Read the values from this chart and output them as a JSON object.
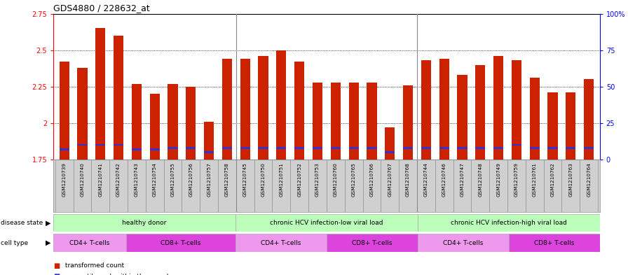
{
  "title": "GDS4880 / 228632_at",
  "samples": [
    "GSM1210739",
    "GSM1210740",
    "GSM1210741",
    "GSM1210742",
    "GSM1210743",
    "GSM1210754",
    "GSM1210755",
    "GSM1210756",
    "GSM1210757",
    "GSM1210758",
    "GSM1210745",
    "GSM1210750",
    "GSM1210751",
    "GSM1210752",
    "GSM1210753",
    "GSM1210760",
    "GSM1210765",
    "GSM1210766",
    "GSM1210767",
    "GSM1210768",
    "GSM1210744",
    "GSM1210746",
    "GSM1210747",
    "GSM1210748",
    "GSM1210749",
    "GSM1210759",
    "GSM1210761",
    "GSM1210762",
    "GSM1210763",
    "GSM1210764"
  ],
  "transformed_count": [
    2.42,
    2.38,
    2.65,
    2.6,
    2.27,
    2.2,
    2.27,
    2.25,
    2.01,
    2.44,
    2.44,
    2.46,
    2.5,
    2.42,
    2.28,
    2.28,
    2.28,
    2.28,
    1.97,
    2.26,
    2.43,
    2.44,
    2.33,
    2.4,
    2.46,
    2.43,
    2.31,
    2.21,
    2.21,
    2.3
  ],
  "percentile_rank": [
    7,
    10,
    10,
    10,
    7,
    7,
    8,
    8,
    5,
    8,
    8,
    8,
    8,
    8,
    8,
    8,
    8,
    8,
    5,
    8,
    8,
    8,
    8,
    8,
    8,
    10,
    8,
    8,
    8,
    8
  ],
  "bar_color": "#cc2200",
  "percentile_color": "#3333cc",
  "y_min": 1.75,
  "y_max": 2.75,
  "y_ticks": [
    1.75,
    2.0,
    2.25,
    2.5,
    2.75
  ],
  "y_tick_labels": [
    "1.75",
    "2",
    "2.25",
    "2.5",
    "2.75"
  ],
  "y2_ticks": [
    0,
    25,
    50,
    75,
    100
  ],
  "y2_labels": [
    "0",
    "25",
    "50",
    "75",
    "100%"
  ],
  "grid_lines": [
    2.0,
    2.25,
    2.5
  ],
  "bar_color_rgb": "#cc2200",
  "percentile_color_rgb": "#3333cc",
  "title_fontsize": 9,
  "tick_fontsize": 7,
  "bar_width": 0.55,
  "ds_groups": [
    {
      "label": "healthy donor",
      "start": 0,
      "end": 10,
      "color": "#bbffbb"
    },
    {
      "label": "chronic HCV infection-low viral load",
      "start": 10,
      "end": 20,
      "color": "#bbffbb"
    },
    {
      "label": "chronic HCV infection-high viral load",
      "start": 20,
      "end": 30,
      "color": "#bbffbb"
    }
  ],
  "ct_groups": [
    {
      "label": "CD4+ T-cells",
      "start": 0,
      "end": 4,
      "color": "#ee99ee"
    },
    {
      "label": "CD8+ T-cells",
      "start": 4,
      "end": 10,
      "color": "#dd44dd"
    },
    {
      "label": "CD4+ T-cells",
      "start": 10,
      "end": 15,
      "color": "#ee99ee"
    },
    {
      "label": "CD8+ T-cells",
      "start": 15,
      "end": 20,
      "color": "#dd44dd"
    },
    {
      "label": "CD4+ T-cells",
      "start": 20,
      "end": 25,
      "color": "#ee99ee"
    },
    {
      "label": "CD8+ T-cells",
      "start": 25,
      "end": 30,
      "color": "#dd44dd"
    }
  ],
  "sample_bg_color": "#d0d0d0",
  "plot_bg": "#ffffff",
  "separator_color": "#888888",
  "spine_color": "#000000"
}
